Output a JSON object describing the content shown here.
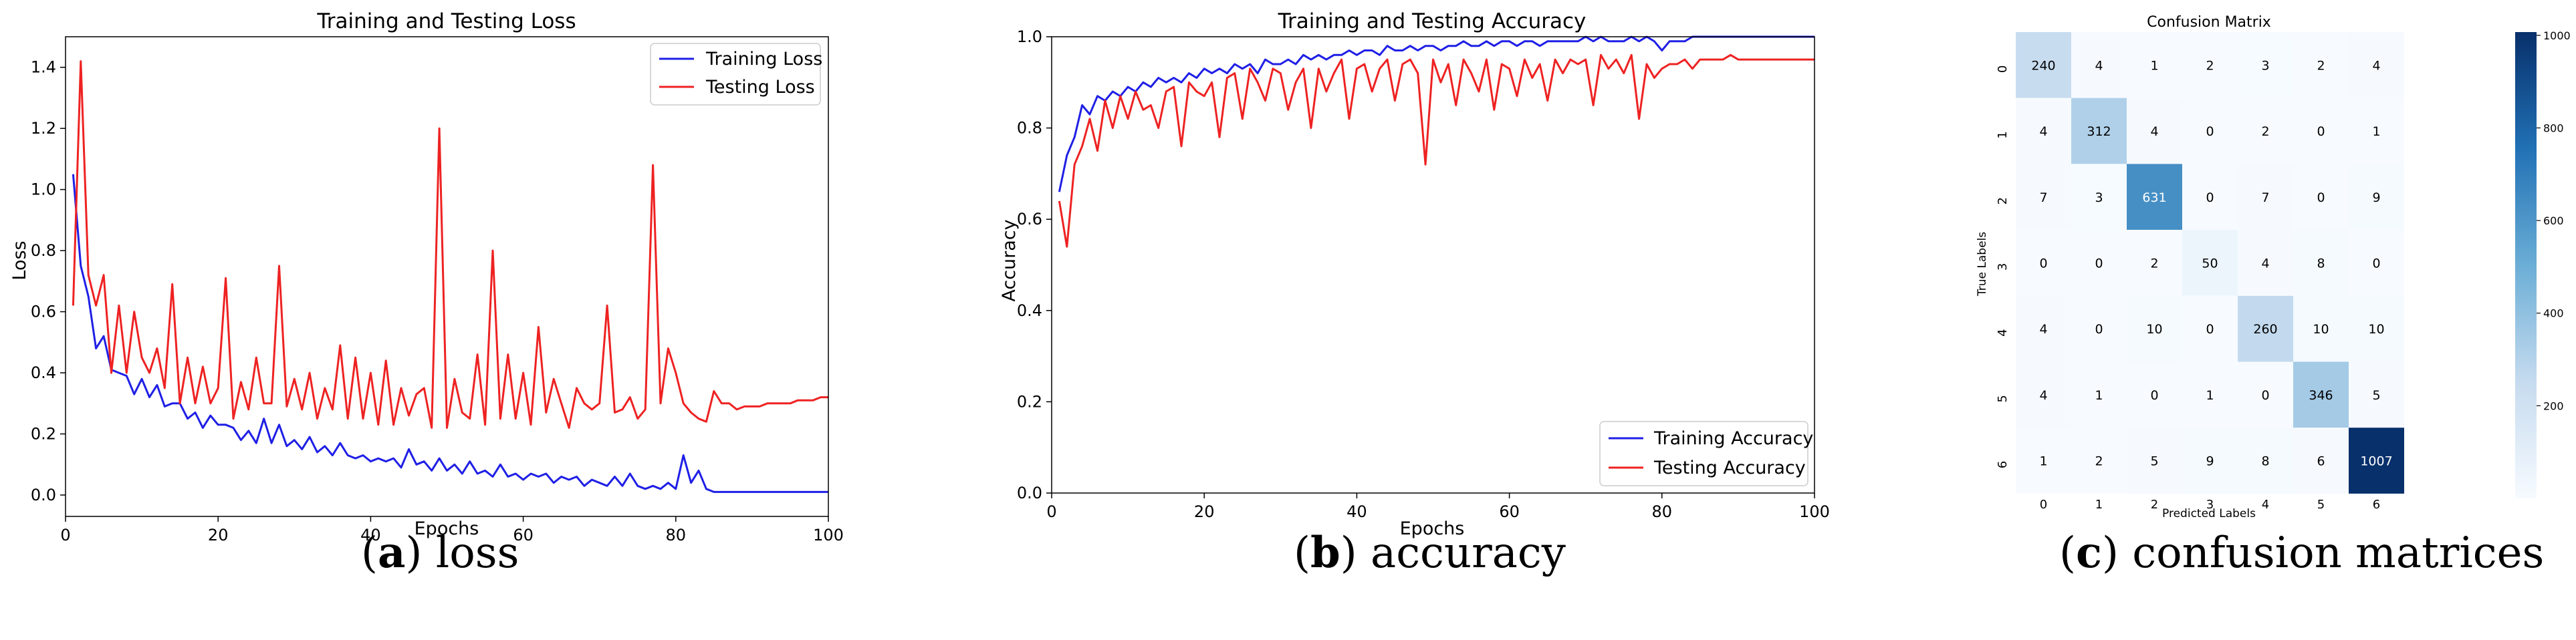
{
  "colors": {
    "training": "#1f1fe6",
    "testing": "#ee2222",
    "cm_low": "#f7fbff",
    "cm_high": "#08306b"
  },
  "captions": [
    {
      "letter": "a",
      "text": " loss"
    },
    {
      "letter": "b",
      "text": " accuracy"
    },
    {
      "letter": "c",
      "text": " confusion matrices"
    }
  ],
  "chart_data": [
    {
      "type": "line",
      "title": "Training and Testing Loss",
      "xlabel": "Epochs",
      "ylabel": "Loss",
      "xlim": [
        0,
        100
      ],
      "ylim": [
        -0.07,
        1.5
      ],
      "xticks": [
        0,
        20,
        40,
        60,
        80,
        100
      ],
      "yticks": [
        0.0,
        0.2,
        0.4,
        0.6,
        0.8,
        1.0,
        1.2,
        1.4
      ],
      "grid": false,
      "legend": "top-right",
      "x": [
        1,
        2,
        3,
        4,
        5,
        6,
        7,
        8,
        9,
        10,
        11,
        12,
        13,
        14,
        15,
        16,
        17,
        18,
        19,
        20,
        21,
        22,
        23,
        24,
        25,
        26,
        27,
        28,
        29,
        30,
        31,
        32,
        33,
        34,
        35,
        36,
        37,
        38,
        39,
        40,
        41,
        42,
        43,
        44,
        45,
        46,
        47,
        48,
        49,
        50,
        51,
        52,
        53,
        54,
        55,
        56,
        57,
        58,
        59,
        60,
        61,
        62,
        63,
        64,
        65,
        66,
        67,
        68,
        69,
        70,
        71,
        72,
        73,
        74,
        75,
        76,
        77,
        78,
        79,
        80,
        81,
        82,
        83,
        84,
        85,
        86,
        87,
        88,
        89,
        90,
        91,
        92,
        93,
        94,
        95,
        96,
        97,
        98,
        99,
        100
      ],
      "series": [
        {
          "name": "Training Loss",
          "values": [
            1.05,
            0.75,
            0.65,
            0.48,
            0.52,
            0.41,
            0.4,
            0.39,
            0.33,
            0.38,
            0.32,
            0.36,
            0.29,
            0.3,
            0.3,
            0.25,
            0.27,
            0.22,
            0.26,
            0.23,
            0.23,
            0.22,
            0.18,
            0.21,
            0.17,
            0.25,
            0.17,
            0.23,
            0.16,
            0.18,
            0.15,
            0.19,
            0.14,
            0.16,
            0.13,
            0.17,
            0.13,
            0.12,
            0.13,
            0.11,
            0.12,
            0.11,
            0.12,
            0.09,
            0.15,
            0.1,
            0.11,
            0.08,
            0.12,
            0.08,
            0.1,
            0.07,
            0.11,
            0.07,
            0.08,
            0.06,
            0.1,
            0.06,
            0.07,
            0.05,
            0.07,
            0.06,
            0.07,
            0.04,
            0.06,
            0.05,
            0.06,
            0.03,
            0.05,
            0.04,
            0.03,
            0.06,
            0.03,
            0.07,
            0.03,
            0.02,
            0.03,
            0.02,
            0.04,
            0.02,
            0.13,
            0.04,
            0.08,
            0.02,
            0.01,
            0.01,
            0.01,
            0.01,
            0.01,
            0.01,
            0.01,
            0.01,
            0.01,
            0.01,
            0.01,
            0.01,
            0.01,
            0.01,
            0.01,
            0.01
          ]
        },
        {
          "name": "Testing Loss",
          "values": [
            0.62,
            1.42,
            0.72,
            0.62,
            0.72,
            0.4,
            0.62,
            0.4,
            0.6,
            0.45,
            0.4,
            0.48,
            0.35,
            0.69,
            0.3,
            0.45,
            0.3,
            0.42,
            0.3,
            0.35,
            0.71,
            0.25,
            0.37,
            0.28,
            0.45,
            0.3,
            0.3,
            0.75,
            0.29,
            0.38,
            0.28,
            0.4,
            0.25,
            0.35,
            0.28,
            0.49,
            0.25,
            0.45,
            0.25,
            0.4,
            0.23,
            0.44,
            0.23,
            0.35,
            0.26,
            0.33,
            0.35,
            0.22,
            1.2,
            0.22,
            0.38,
            0.27,
            0.25,
            0.46,
            0.23,
            0.8,
            0.25,
            0.46,
            0.25,
            0.4,
            0.23,
            0.55,
            0.27,
            0.38,
            0.3,
            0.22,
            0.35,
            0.3,
            0.28,
            0.3,
            0.62,
            0.27,
            0.28,
            0.32,
            0.25,
            0.28,
            1.08,
            0.3,
            0.48,
            0.4,
            0.3,
            0.27,
            0.25,
            0.24,
            0.34,
            0.3,
            0.3,
            0.28,
            0.29,
            0.29,
            0.29,
            0.3,
            0.3,
            0.3,
            0.3,
            0.31,
            0.31,
            0.31,
            0.32,
            0.32
          ]
        }
      ]
    },
    {
      "type": "line",
      "title": "Training and Testing Accuracy",
      "xlabel": "Epochs",
      "ylabel": "Accuracy",
      "xlim": [
        0,
        100
      ],
      "ylim": [
        0.0,
        1.0
      ],
      "xticks": [
        0,
        20,
        40,
        60,
        80,
        100
      ],
      "yticks": [
        0.0,
        0.2,
        0.4,
        0.6,
        0.8,
        1.0
      ],
      "grid": false,
      "legend": "bottom-right",
      "x": [
        1,
        2,
        3,
        4,
        5,
        6,
        7,
        8,
        9,
        10,
        11,
        12,
        13,
        14,
        15,
        16,
        17,
        18,
        19,
        20,
        21,
        22,
        23,
        24,
        25,
        26,
        27,
        28,
        29,
        30,
        31,
        32,
        33,
        34,
        35,
        36,
        37,
        38,
        39,
        40,
        41,
        42,
        43,
        44,
        45,
        46,
        47,
        48,
        49,
        50,
        51,
        52,
        53,
        54,
        55,
        56,
        57,
        58,
        59,
        60,
        61,
        62,
        63,
        64,
        65,
        66,
        67,
        68,
        69,
        70,
        71,
        72,
        73,
        74,
        75,
        76,
        77,
        78,
        79,
        80,
        81,
        82,
        83,
        84,
        85,
        86,
        87,
        88,
        89,
        90,
        91,
        92,
        93,
        94,
        95,
        96,
        97,
        98,
        99,
        100
      ],
      "series": [
        {
          "name": "Training Accuracy",
          "values": [
            0.66,
            0.74,
            0.78,
            0.85,
            0.83,
            0.87,
            0.86,
            0.88,
            0.87,
            0.89,
            0.88,
            0.9,
            0.89,
            0.91,
            0.9,
            0.91,
            0.9,
            0.92,
            0.91,
            0.93,
            0.92,
            0.93,
            0.92,
            0.94,
            0.93,
            0.94,
            0.92,
            0.95,
            0.94,
            0.94,
            0.95,
            0.94,
            0.96,
            0.95,
            0.96,
            0.95,
            0.96,
            0.96,
            0.97,
            0.96,
            0.97,
            0.97,
            0.96,
            0.98,
            0.97,
            0.97,
            0.98,
            0.97,
            0.98,
            0.98,
            0.97,
            0.98,
            0.98,
            0.99,
            0.98,
            0.98,
            0.99,
            0.98,
            0.99,
            0.99,
            0.98,
            0.99,
            0.99,
            0.98,
            0.99,
            0.99,
            0.99,
            0.99,
            0.99,
            1.0,
            0.99,
            1.0,
            0.99,
            0.99,
            0.99,
            1.0,
            0.99,
            1.0,
            0.99,
            0.97,
            0.99,
            0.99,
            0.99,
            1.0,
            1.0,
            1.0,
            1.0,
            1.0,
            1.0,
            1.0,
            1.0,
            1.0,
            1.0,
            1.0,
            1.0,
            1.0,
            1.0,
            1.0,
            1.0,
            1.0
          ]
        },
        {
          "name": "Testing Accuracy",
          "values": [
            0.64,
            0.54,
            0.72,
            0.76,
            0.82,
            0.75,
            0.86,
            0.8,
            0.87,
            0.82,
            0.88,
            0.84,
            0.85,
            0.8,
            0.88,
            0.89,
            0.76,
            0.9,
            0.88,
            0.87,
            0.9,
            0.78,
            0.91,
            0.92,
            0.82,
            0.93,
            0.9,
            0.86,
            0.93,
            0.92,
            0.84,
            0.9,
            0.93,
            0.8,
            0.93,
            0.88,
            0.92,
            0.95,
            0.82,
            0.93,
            0.94,
            0.88,
            0.93,
            0.95,
            0.86,
            0.94,
            0.95,
            0.92,
            0.72,
            0.95,
            0.9,
            0.94,
            0.85,
            0.95,
            0.92,
            0.88,
            0.95,
            0.84,
            0.94,
            0.93,
            0.87,
            0.95,
            0.91,
            0.94,
            0.86,
            0.95,
            0.92,
            0.95,
            0.94,
            0.95,
            0.85,
            0.96,
            0.93,
            0.95,
            0.92,
            0.96,
            0.82,
            0.94,
            0.91,
            0.93,
            0.94,
            0.94,
            0.95,
            0.93,
            0.95,
            0.95,
            0.95,
            0.95,
            0.96,
            0.95,
            0.95,
            0.95,
            0.95,
            0.95,
            0.95,
            0.95,
            0.95,
            0.95,
            0.95,
            0.95
          ]
        }
      ]
    },
    {
      "type": "heatmap",
      "title": "Confusion Matrix",
      "xlabel": "Predicted Labels",
      "ylabel": "True Labels",
      "x_categories": [
        "0",
        "1",
        "2",
        "3",
        "4",
        "5",
        "6"
      ],
      "y_categories": [
        "0",
        "1",
        "2",
        "3",
        "4",
        "5",
        "6"
      ],
      "values": [
        [
          240,
          4,
          1,
          2,
          3,
          2,
          4
        ],
        [
          4,
          312,
          4,
          0,
          2,
          0,
          1
        ],
        [
          7,
          3,
          631,
          0,
          7,
          0,
          9
        ],
        [
          0,
          0,
          2,
          50,
          4,
          8,
          0
        ],
        [
          4,
          0,
          10,
          0,
          260,
          10,
          10
        ],
        [
          4,
          1,
          0,
          1,
          0,
          346,
          5
        ],
        [
          1,
          2,
          5,
          9,
          8,
          6,
          1007
        ]
      ],
      "colorbar": {
        "min": 0,
        "max": 1007,
        "ticks": [
          200,
          400,
          600,
          800,
          1000
        ]
      }
    }
  ]
}
